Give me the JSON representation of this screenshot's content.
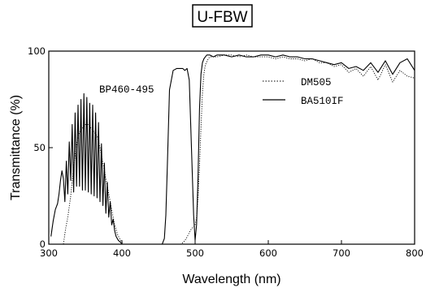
{
  "chart_data": {
    "type": "line",
    "title": "U-FBW",
    "xlabel": "Wavelength (nm)",
    "ylabel": "Transmittance (%)",
    "xlim": [
      300,
      800
    ],
    "ylim": [
      0,
      100
    ],
    "xticks": [
      300,
      400,
      500,
      600,
      700,
      800
    ],
    "yticks": [
      0,
      50,
      100
    ],
    "grid": false,
    "legend_position": "top-right",
    "annotations": [
      {
        "text": "BP460-495",
        "x": 463,
        "y": 86
      }
    ],
    "series": [
      {
        "name": "BA510IF",
        "style": "solid",
        "x": [
          303,
          306,
          309,
          312,
          314,
          316,
          318,
          320,
          322,
          324,
          326,
          328,
          330,
          332,
          334,
          336,
          338,
          340,
          342,
          344,
          346,
          348,
          350,
          352,
          354,
          356,
          358,
          360,
          362,
          364,
          366,
          368,
          370,
          372,
          374,
          376,
          378,
          380,
          382,
          384,
          386,
          388,
          390,
          392,
          395,
          398,
          400,
          455,
          458,
          460,
          462,
          465,
          470,
          475,
          480,
          483,
          486,
          489,
          492,
          495,
          498,
          500,
          500,
          502,
          504,
          506,
          508,
          510,
          512,
          514,
          516,
          518,
          520,
          525,
          530,
          540,
          550,
          560,
          570,
          580,
          590,
          600,
          610,
          620,
          630,
          640,
          650,
          660,
          670,
          680,
          690,
          700,
          710,
          720,
          730,
          740,
          750,
          760,
          770,
          780,
          790,
          800
        ],
        "values": [
          4,
          12,
          18,
          21,
          26,
          33,
          38,
          34,
          22,
          43,
          26,
          53,
          33,
          62,
          27,
          68,
          30,
          72,
          30,
          75,
          28,
          78,
          28,
          76,
          27,
          73,
          26,
          72,
          25,
          68,
          24,
          63,
          22,
          52,
          20,
          42,
          16,
          32,
          14,
          22,
          10,
          13,
          7,
          4,
          2,
          1,
          0,
          0,
          3,
          15,
          40,
          80,
          90,
          91,
          91,
          91,
          90,
          91,
          85,
          50,
          15,
          2,
          2,
          10,
          35,
          70,
          88,
          94,
          96,
          97,
          98,
          98,
          98,
          97,
          98,
          98,
          97,
          98,
          97,
          97,
          98,
          98,
          97,
          98,
          97,
          97,
          96,
          96,
          95,
          94,
          93,
          94,
          91,
          92,
          90,
          94,
          89,
          95,
          88,
          94,
          96,
          90
        ],
        "color": "#000000"
      },
      {
        "name": "DM505",
        "style": "dotted",
        "x": [
          320,
          323,
          326,
          330,
          334,
          338,
          342,
          346,
          350,
          354,
          358,
          362,
          366,
          370,
          374,
          378,
          382,
          386,
          390,
          394,
          398,
          402,
          480,
          484,
          488,
          492,
          495,
          498,
          500,
          502,
          504,
          506,
          508,
          510,
          512,
          514,
          518,
          520,
          530,
          540,
          550,
          560,
          570,
          580,
          590,
          600,
          610,
          620,
          630,
          640,
          650,
          660,
          670,
          680,
          690,
          700,
          710,
          720,
          730,
          740,
          750,
          760,
          770,
          780,
          790,
          800
        ],
        "values": [
          0,
          8,
          14,
          25,
          40,
          52,
          58,
          60,
          62,
          62,
          60,
          58,
          56,
          50,
          42,
          34,
          26,
          18,
          10,
          5,
          2,
          0,
          0,
          1,
          3,
          6,
          8,
          9,
          10,
          14,
          24,
          40,
          60,
          78,
          88,
          93,
          96,
          97,
          97,
          98,
          98,
          97,
          98,
          97,
          97,
          97,
          96,
          97,
          96,
          96,
          95,
          96,
          94,
          94,
          92,
          93,
          89,
          91,
          87,
          92,
          85,
          93,
          84,
          90,
          87,
          86
        ],
        "color": "#000000"
      }
    ],
    "legend": [
      {
        "label": "DM505",
        "style": "dotted"
      },
      {
        "label": "BA510IF",
        "style": "solid"
      }
    ]
  }
}
